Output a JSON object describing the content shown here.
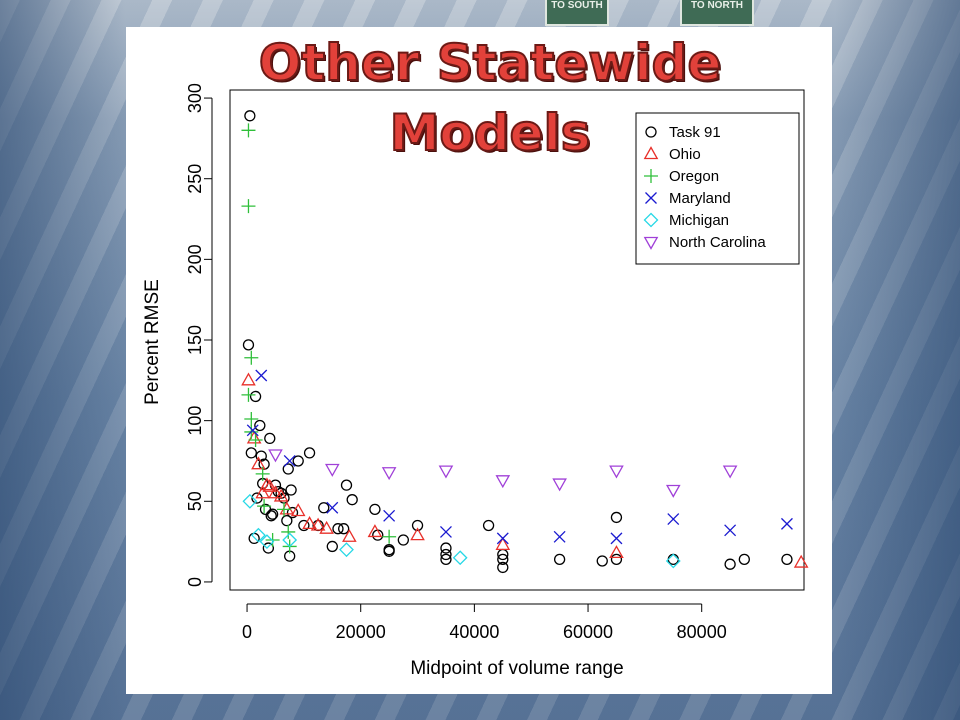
{
  "slide": {
    "title": "Other Statewide Models",
    "sign_south": "TO SOUTH",
    "sign_north": "TO NORTH"
  },
  "colors": {
    "Task 91": "#000000",
    "Ohio": "#e8302a",
    "Oregon": "#2fbf3a",
    "Maryland": "#1a1ad0",
    "Michigan": "#27d8e6",
    "North Carolina": "#a040d8"
  },
  "chart_data": {
    "type": "scatter",
    "title": "",
    "xlabel": "Midpoint of volume range",
    "ylabel": "Percent RMSE",
    "xlim": [
      -3000,
      98000
    ],
    "ylim": [
      -5,
      305
    ],
    "x_ticks": [
      0,
      20000,
      40000,
      60000,
      80000
    ],
    "y_ticks": [
      0,
      50,
      100,
      150,
      200,
      250,
      300
    ],
    "grid": false,
    "legend_position": "top-right",
    "series": [
      {
        "name": "Task 91",
        "marker": "circle",
        "points": [
          [
            500,
            289
          ],
          [
            250,
            147
          ],
          [
            750,
            80
          ],
          [
            1250,
            27
          ],
          [
            1500,
            115
          ],
          [
            1750,
            52
          ],
          [
            2250,
            97
          ],
          [
            2500,
            78
          ],
          [
            2750,
            61
          ],
          [
            3000,
            73
          ],
          [
            3250,
            45
          ],
          [
            3750,
            21
          ],
          [
            4000,
            89
          ],
          [
            4250,
            41
          ],
          [
            4500,
            42
          ],
          [
            5000,
            60
          ],
          [
            5500,
            56
          ],
          [
            6000,
            55
          ],
          [
            6500,
            52
          ],
          [
            7000,
            38
          ],
          [
            7250,
            70
          ],
          [
            7500,
            16
          ],
          [
            7750,
            57
          ],
          [
            8000,
            43
          ],
          [
            9000,
            75
          ],
          [
            10000,
            35
          ],
          [
            11000,
            80
          ],
          [
            12500,
            35
          ],
          [
            13500,
            46
          ],
          [
            15000,
            22
          ],
          [
            16000,
            33
          ],
          [
            17000,
            33
          ],
          [
            17500,
            60
          ],
          [
            18500,
            51
          ],
          [
            22500,
            45
          ],
          [
            23000,
            29
          ],
          [
            25000,
            19
          ],
          [
            25000,
            20
          ],
          [
            27500,
            26
          ],
          [
            30000,
            35
          ],
          [
            35000,
            14
          ],
          [
            35000,
            17
          ],
          [
            35000,
            21
          ],
          [
            42500,
            35
          ],
          [
            45000,
            9
          ],
          [
            45000,
            14
          ],
          [
            45000,
            17
          ],
          [
            55000,
            14
          ],
          [
            62500,
            13
          ],
          [
            65000,
            14
          ],
          [
            65000,
            40
          ],
          [
            75000,
            14
          ],
          [
            85000,
            11
          ],
          [
            87500,
            14
          ],
          [
            95000,
            14
          ]
        ]
      },
      {
        "name": "Ohio",
        "marker": "triangle-up",
        "points": [
          [
            250,
            125
          ],
          [
            1250,
            89
          ],
          [
            2000,
            73
          ],
          [
            2750,
            55
          ],
          [
            3500,
            60
          ],
          [
            4000,
            59
          ],
          [
            5000,
            55
          ],
          [
            6000,
            53
          ],
          [
            7000,
            45
          ],
          [
            9000,
            44
          ],
          [
            11000,
            36
          ],
          [
            12500,
            35
          ],
          [
            14000,
            33
          ],
          [
            18000,
            28
          ],
          [
            22500,
            31
          ],
          [
            30000,
            29
          ],
          [
            45000,
            23
          ],
          [
            65000,
            18
          ],
          [
            97500,
            12
          ]
        ]
      },
      {
        "name": "Oregon",
        "marker": "plus",
        "points": [
          [
            250,
            280
          ],
          [
            250,
            233
          ],
          [
            750,
            139
          ],
          [
            250,
            116
          ],
          [
            750,
            101
          ],
          [
            750,
            93
          ],
          [
            1500,
            88
          ],
          [
            2750,
            67
          ],
          [
            3000,
            47
          ],
          [
            4500,
            26
          ],
          [
            6500,
            45
          ],
          [
            7250,
            31
          ],
          [
            7500,
            22
          ],
          [
            25000,
            28
          ]
        ]
      },
      {
        "name": "Maryland",
        "marker": "cross",
        "points": [
          [
            2500,
            128
          ],
          [
            1000,
            94
          ],
          [
            7500,
            75
          ],
          [
            15000,
            46
          ],
          [
            25000,
            41
          ],
          [
            35000,
            31
          ],
          [
            45000,
            27
          ],
          [
            55000,
            28
          ],
          [
            65000,
            27
          ],
          [
            75000,
            39
          ],
          [
            85000,
            32
          ],
          [
            95000,
            36
          ]
        ]
      },
      {
        "name": "Michigan",
        "marker": "diamond",
        "points": [
          [
            500,
            50
          ],
          [
            2000,
            29
          ],
          [
            3500,
            25
          ],
          [
            7500,
            26
          ],
          [
            17500,
            20
          ],
          [
            37500,
            15
          ],
          [
            75000,
            13
          ]
        ]
      },
      {
        "name": "North Carolina",
        "marker": "triangle-down",
        "points": [
          [
            5000,
            79
          ],
          [
            15000,
            70
          ],
          [
            25000,
            68
          ],
          [
            35000,
            69
          ],
          [
            45000,
            63
          ],
          [
            55000,
            61
          ],
          [
            65000,
            69
          ],
          [
            75000,
            57
          ],
          [
            85000,
            69
          ]
        ]
      }
    ]
  }
}
